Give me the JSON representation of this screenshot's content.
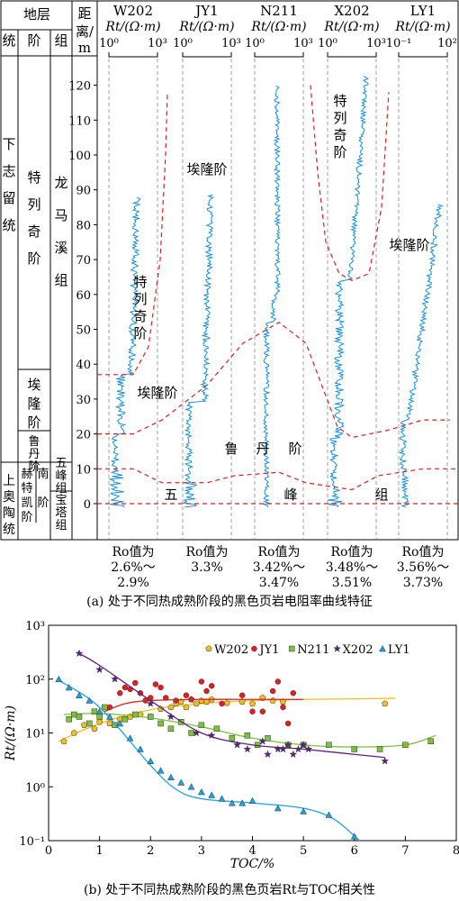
{
  "strat": {
    "header_layer": "地层",
    "col_series": "统",
    "col_stage": "阶",
    "col_group": "组",
    "header_dist": [
      "距",
      "离/",
      "m"
    ],
    "series_lower": "下志留统",
    "series_upper": "上奥陶统",
    "stage_telychian": "特列奇阶",
    "stage_aeronian": "埃隆阶",
    "stage_rhuddanian": "鲁丹阶",
    "stage_hirnantian": "赫特凯阶",
    "stage_nanjin": "南阶",
    "stage_nanjin_chars": "南阶",
    "group_longmaxi": "龙马溪组",
    "group_wufeng": "五峰组",
    "group_baota": "宝塔组"
  },
  "panel_a": {
    "caption": "(a) 处于不同热成熟阶段的黑色页岩电阻率曲线特征",
    "yticks": [
      0,
      10,
      20,
      30,
      40,
      50,
      60,
      70,
      80,
      90,
      100,
      110,
      120
    ],
    "wells": [
      {
        "name": "W202",
        "unit": "Rt/(Ω·m)",
        "scale_min": "10⁰",
        "scale_max": "10³",
        "ro_label": "Ro值为",
        "ro_range_1": "2.6%～",
        "ro_range_2": "2.9%"
      },
      {
        "name": "JY1",
        "unit": "Rt/(Ω·m)",
        "scale_min": "10⁰",
        "scale_max": "10³",
        "ro_label": "Ro值为",
        "ro_range_1": "3.3%",
        "ro_range_2": ""
      },
      {
        "name": "N211",
        "unit": "Rt/(Ω·m)",
        "scale_min": "10⁰",
        "scale_max": "10³",
        "ro_label": "Ro值为",
        "ro_range_1": "3.42%～",
        "ro_range_2": "3.47%"
      },
      {
        "name": "X202",
        "unit": "Rt/(Ω·m)",
        "scale_min": "10⁰",
        "scale_max": "10³",
        "ro_label": "Ro值为",
        "ro_range_1": "3.48%～",
        "ro_range_2": "3.51%"
      },
      {
        "name": "LY1",
        "unit": "Rt/(Ω·m)",
        "scale_min": "10⁻¹",
        "scale_max": "10²",
        "ro_label": "Ro值为",
        "ro_range_1": "3.56%～",
        "ro_range_2": "3.73%"
      }
    ],
    "annotations": {
      "telychian_w202": "特列奇阶",
      "aeronian_w202": "埃隆阶",
      "aeronian_jy1": "埃隆阶",
      "telychian_x202": "特列奇阶",
      "aeronian_ly1": "埃隆阶",
      "rhuddanian_1": "鲁",
      "rhuddanian_2": "丹",
      "rhuddanian_3": "阶",
      "wufeng_1": "五",
      "wufeng_2": "峰",
      "wufeng_3": "组"
    }
  },
  "chart_data": [
    {
      "type": "line",
      "title": "",
      "ylabel": "距离/m",
      "ylim": [
        -3,
        125
      ],
      "note": "Five resistivity (Rt) well-log curves versus distance; boundary depths are in metres",
      "boundaries": {
        "top_wufeng": {
          "W202": 10,
          "JY1": 6,
          "N211": 9,
          "X202": 4,
          "LY1": 10
        },
        "top_rhuddanian": {
          "W202": 20,
          "JY1": 29,
          "N211": 52,
          "X202": 19,
          "LY1": 24
        },
        "top_aeronian": {
          "W202": 37,
          "JY1": 0,
          "N211": 0,
          "X202": 64,
          "LY1": 0
        },
        "log_top": {
          "W202": 88,
          "JY1": 89,
          "N211": 120,
          "X202": 123,
          "LY1": 86
        }
      }
    },
    {
      "type": "scatter",
      "title": "",
      "xlabel": "TOC/%",
      "ylabel": "Rt/(Ω·m)",
      "xlim": [
        0,
        8
      ],
      "ylim": [
        0.1,
        1000
      ],
      "yscale": "log",
      "xticks": [
        0,
        1,
        2,
        3,
        4,
        5,
        6,
        7,
        8
      ],
      "yticks": [
        "10⁻¹",
        "10⁰",
        "10¹",
        "10²",
        "10³"
      ],
      "legend_position": "top-right",
      "series": [
        {
          "name": "W202",
          "color": "#f0c020",
          "marker": "pentagon",
          "points": [
            [
              0.3,
              7
            ],
            [
              0.5,
              10
            ],
            [
              0.7,
              14
            ],
            [
              0.9,
              12
            ],
            [
              1.0,
              16
            ],
            [
              1.2,
              15
            ],
            [
              1.4,
              18
            ],
            [
              1.6,
              20
            ],
            [
              1.8,
              22
            ],
            [
              2.0,
              20
            ],
            [
              2.2,
              28
            ],
            [
              2.4,
              30
            ],
            [
              2.5,
              35
            ],
            [
              2.6,
              38
            ],
            [
              2.7,
              30
            ],
            [
              2.8,
              42
            ],
            [
              2.9,
              35
            ],
            [
              3.0,
              40
            ],
            [
              3.1,
              38
            ],
            [
              3.2,
              42
            ],
            [
              3.5,
              36
            ],
            [
              3.8,
              38
            ],
            [
              4.0,
              35
            ],
            [
              4.2,
              45
            ],
            [
              4.4,
              40
            ],
            [
              4.6,
              38
            ],
            [
              6.6,
              35
            ]
          ],
          "fit": [
            [
              0.2,
              7
            ],
            [
              1,
              15
            ],
            [
              2,
              27
            ],
            [
              3,
              35
            ],
            [
              4,
              40
            ],
            [
              5,
              42
            ],
            [
              6,
              43
            ],
            [
              6.8,
              44
            ]
          ]
        },
        {
          "name": "JY1",
          "color": "#e02020",
          "marker": "circle",
          "points": [
            [
              1.2,
              30
            ],
            [
              1.4,
              55
            ],
            [
              1.5,
              70
            ],
            [
              1.6,
              65
            ],
            [
              1.7,
              85
            ],
            [
              1.8,
              55
            ],
            [
              1.9,
              40
            ],
            [
              2.0,
              45
            ],
            [
              2.1,
              80
            ],
            [
              2.2,
              70
            ],
            [
              2.3,
              45
            ],
            [
              2.5,
              40
            ],
            [
              2.7,
              50
            ],
            [
              2.8,
              42
            ],
            [
              3.0,
              90
            ],
            [
              3.1,
              60
            ],
            [
              3.2,
              75
            ],
            [
              3.4,
              35
            ],
            [
              3.8,
              50
            ],
            [
              4.0,
              25
            ],
            [
              4.2,
              25
            ],
            [
              4.4,
              60
            ],
            [
              4.5,
              90
            ],
            [
              4.6,
              30
            ],
            [
              4.7,
              15
            ],
            [
              4.8,
              55
            ]
          ],
          "fit": [
            [
              1.1,
              25
            ],
            [
              1.5,
              35
            ],
            [
              2,
              40
            ],
            [
              3,
              42
            ],
            [
              4,
              42
            ],
            [
              5,
              42
            ]
          ]
        },
        {
          "name": "N211",
          "color": "#7fbf40",
          "marker": "square",
          "points": [
            [
              0.4,
              18
            ],
            [
              0.5,
              22
            ],
            [
              0.6,
              20
            ],
            [
              0.8,
              15
            ],
            [
              0.9,
              25
            ],
            [
              1.0,
              20
            ],
            [
              1.1,
              30
            ],
            [
              1.3,
              14
            ],
            [
              1.5,
              18
            ],
            [
              1.7,
              22
            ],
            [
              2.0,
              20
            ],
            [
              2.2,
              15
            ],
            [
              2.4,
              12
            ],
            [
              2.6,
              16
            ],
            [
              2.8,
              10
            ],
            [
              3.0,
              14
            ],
            [
              3.3,
              12
            ],
            [
              3.6,
              8
            ],
            [
              3.9,
              9
            ],
            [
              4.1,
              6
            ],
            [
              4.3,
              8
            ],
            [
              4.7,
              6
            ],
            [
              5.0,
              6
            ],
            [
              5.5,
              6
            ],
            [
              6.0,
              5
            ],
            [
              6.5,
              5
            ],
            [
              7.0,
              6
            ],
            [
              7.5,
              7
            ]
          ],
          "fit": [
            [
              0.3,
              22
            ],
            [
              1,
              23
            ],
            [
              2,
              19
            ],
            [
              3,
              13
            ],
            [
              4,
              8
            ],
            [
              5,
              6
            ],
            [
              6,
              5.5
            ],
            [
              7,
              6
            ],
            [
              7.6,
              9
            ]
          ]
        },
        {
          "name": "X202",
          "color": "#602080",
          "marker": "star",
          "points": [
            [
              0.6,
              300
            ],
            [
              1.0,
              150
            ],
            [
              1.3,
              100
            ],
            [
              2.0,
              35
            ],
            [
              2.4,
              20
            ],
            [
              2.9,
              10
            ],
            [
              3.2,
              9
            ],
            [
              3.7,
              6
            ],
            [
              3.9,
              5
            ],
            [
              4.2,
              7
            ],
            [
              4.3,
              4
            ],
            [
              4.5,
              5
            ],
            [
              4.6,
              5
            ],
            [
              4.7,
              6
            ],
            [
              4.8,
              4
            ],
            [
              4.9,
              5
            ],
            [
              5.0,
              6
            ],
            [
              5.1,
              5
            ],
            [
              6.6,
              3
            ]
          ],
          "fit": [
            [
              0.6,
              300
            ],
            [
              1,
              180
            ],
            [
              2,
              40
            ],
            [
              3,
              10
            ],
            [
              4,
              6
            ],
            [
              5,
              5
            ],
            [
              6,
              4
            ],
            [
              6.6,
              3.5
            ]
          ]
        },
        {
          "name": "LY1",
          "color": "#20a0e0",
          "marker": "triangle",
          "points": [
            [
              0.2,
              100
            ],
            [
              0.4,
              70
            ],
            [
              0.6,
              50
            ],
            [
              0.8,
              40
            ],
            [
              1.0,
              25
            ],
            [
              1.2,
              20
            ],
            [
              1.4,
              15
            ],
            [
              1.6,
              8
            ],
            [
              1.8,
              5
            ],
            [
              2.0,
              3
            ],
            [
              2.2,
              2
            ],
            [
              2.4,
              1.5
            ],
            [
              2.6,
              1.2
            ],
            [
              2.8,
              1.0
            ],
            [
              3.0,
              0.8
            ],
            [
              3.2,
              0.7
            ],
            [
              3.4,
              0.6
            ],
            [
              3.6,
              0.5
            ],
            [
              3.8,
              0.5
            ],
            [
              4.0,
              0.55
            ],
            [
              4.5,
              0.4
            ],
            [
              5.0,
              0.35
            ],
            [
              5.5,
              0.3
            ],
            [
              6.0,
              0.12
            ]
          ],
          "fit": [
            [
              0.2,
              95
            ],
            [
              1,
              30
            ],
            [
              2,
              2.5
            ],
            [
              2.5,
              0.9
            ],
            [
              3,
              0.6
            ],
            [
              4,
              0.5
            ],
            [
              5,
              0.4
            ],
            [
              5.6,
              0.25
            ],
            [
              6.1,
              0.1
            ]
          ]
        }
      ]
    }
  ],
  "panel_b": {
    "caption": "(b) 处于不同热成熟阶段的黑色页岩Rt与TOC相关性"
  }
}
